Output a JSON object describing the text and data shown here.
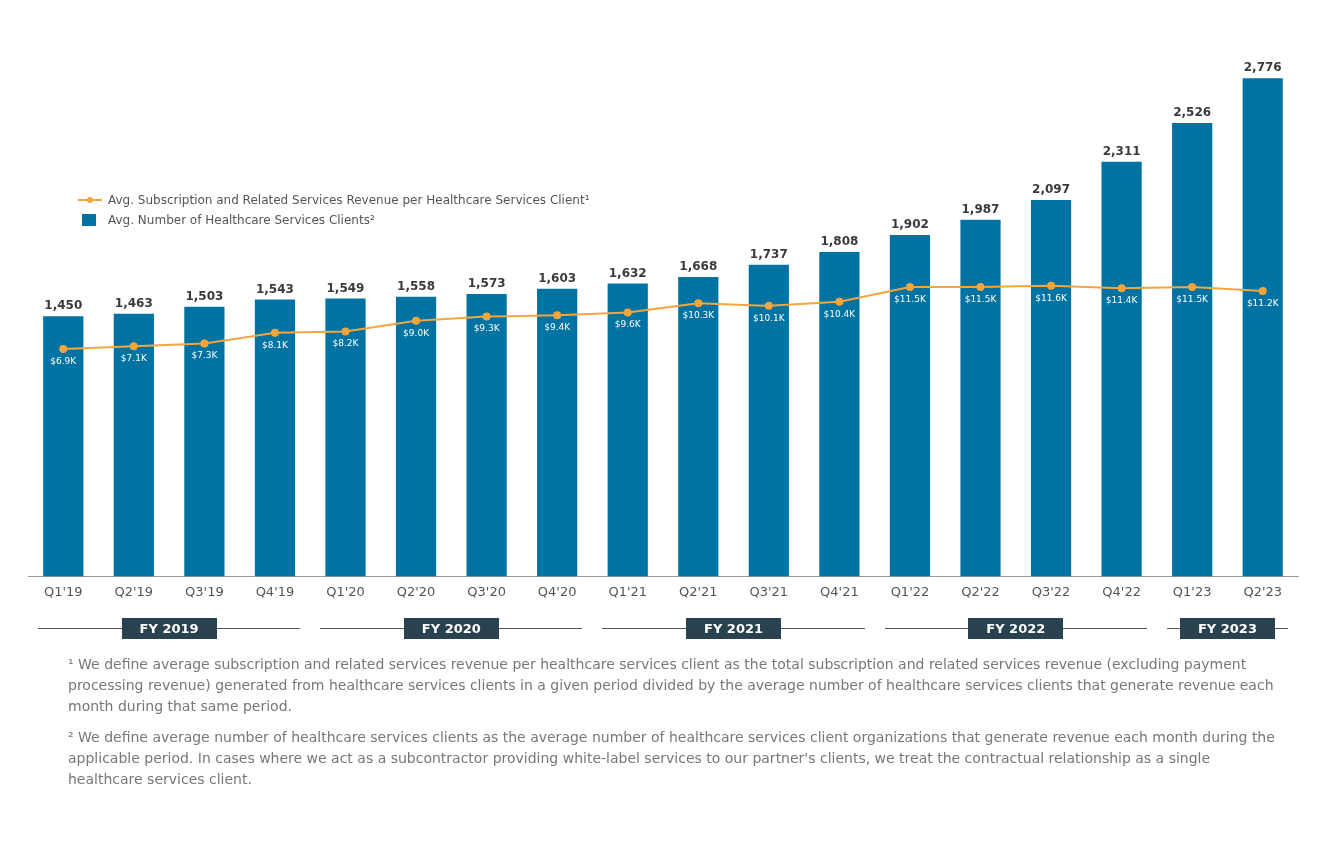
{
  "chart_data": {
    "type": "bar",
    "categories": [
      "Q1'19",
      "Q2'19",
      "Q3'19",
      "Q4'19",
      "Q1'20",
      "Q2'20",
      "Q3'20",
      "Q4'20",
      "Q1'21",
      "Q2'21",
      "Q3'21",
      "Q4'21",
      "Q1'22",
      "Q2'22",
      "Q3'22",
      "Q4'22",
      "Q1'23",
      "Q2'23"
    ],
    "series": [
      {
        "name": "Avg. Subscription and Related Services Revenue per Healthcare Services Client¹",
        "type": "line",
        "axis": "y2",
        "color": "#f5a53b",
        "marker": "circle",
        "values": [
          6.9,
          7.1,
          7.3,
          8.1,
          8.2,
          9.0,
          9.3,
          9.4,
          9.6,
          10.3,
          10.1,
          10.4,
          11.5,
          11.5,
          11.6,
          11.4,
          11.5,
          11.2
        ],
        "value_labels": [
          "$6.9K",
          "$7.1K",
          "$7.3K",
          "$8.1K",
          "$8.2K",
          "$9.0K",
          "$9.3K",
          "$9.4K",
          "$9.6K",
          "$10.3K",
          "$10.1K",
          "$10.4K",
          "$11.5K",
          "$11.5K",
          "$11.6K",
          "$11.4K",
          "$11.5K",
          "$11.2K"
        ]
      },
      {
        "name": "Avg. Number of Healthcare Services Clients²",
        "type": "bar",
        "color": "#0073a3",
        "values": [
          1450,
          1463,
          1503,
          1543,
          1549,
          1558,
          1573,
          1603,
          1632,
          1668,
          1737,
          1808,
          1902,
          1987,
          2097,
          2311,
          2526,
          2776
        ],
        "value_labels": [
          "1,450",
          "1,463",
          "1,503",
          "1,543",
          "1,549",
          "1,558",
          "1,573",
          "1,603",
          "1,632",
          "1,668",
          "1,737",
          "1,808",
          "1,902",
          "1,987",
          "2,097",
          "2,311",
          "2,526",
          "2,776"
        ]
      }
    ],
    "tick_labels": "x",
    "legend": "top left",
    "annotations": [
      "FY 2019",
      "FY 2020",
      "FY 2021",
      "FY 2022",
      "FY 2023",
      "¹ We define average subscription and related services revenue per healthcare services client as the total subscription and related services revenue (excluding payment processing revenue) generated from healthcare services clients in a given period divided by the average number of healthcare services clients that generate revenue each month during that same period.",
      "² We define average number of healthcare services clients as the average number of healthcare services client organizations that generate revenue each month during the applicable period. In cases where we act as a subcontractor providing white-label services to our partner's clients, we treat the contractual relationship as a single healthcare services client."
    ]
  }
}
